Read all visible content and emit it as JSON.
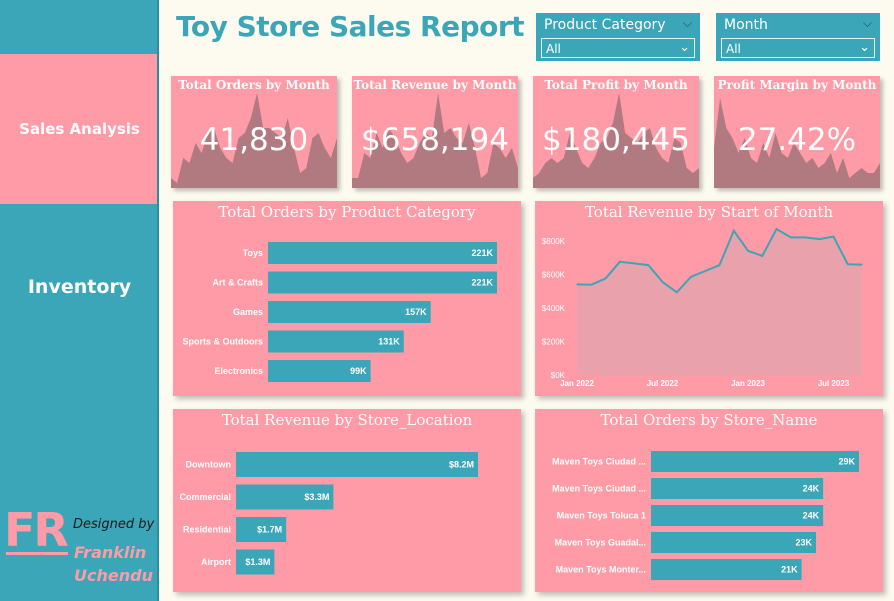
{
  "header": {
    "title": "Toy Store Sales Report"
  },
  "slicers": [
    {
      "label": "Product Category",
      "value": "All"
    },
    {
      "label": "Month",
      "value": "All"
    }
  ],
  "sidebar": {
    "sales_analysis": "Sales Analysis",
    "inventory": "Inventory",
    "logo": "FR",
    "designed_by": "Designed by",
    "designer_first": "Franklin",
    "designer_last": "Uchendu"
  },
  "colors": {
    "teal": "#3aa6b8",
    "pink": "#ff9ba6",
    "mauve": "#b07a80",
    "background": "#fdfbf0"
  },
  "kpis": [
    {
      "title": "Total Orders by Month",
      "value": "41,830"
    },
    {
      "title": "Total Revenue by Month",
      "value": "$658,194"
    },
    {
      "title": "Total Profit by Month",
      "value": "$180,445"
    },
    {
      "title": "Profit Margin by Month",
      "value": "27.42%"
    }
  ],
  "chart_data": [
    {
      "type": "bar",
      "title": "Total Orders by Product Category",
      "categories": [
        "Toys",
        "Art & Crafts",
        "Games",
        "Sports & Outdoors",
        "Electronics"
      ],
      "values": [
        221000,
        221000,
        157000,
        131000,
        99000
      ],
      "labels": [
        "221K",
        "221K",
        "157K",
        "131K",
        "99K"
      ],
      "orientation": "horizontal"
    },
    {
      "type": "area",
      "title": "Total Revenue by Start of Month",
      "x": [
        "Jan 2022",
        "Feb 2022",
        "Mar 2022",
        "Apr 2022",
        "May 2022",
        "Jun 2022",
        "Jul 2022",
        "Aug 2022",
        "Sep 2022",
        "Oct 2022",
        "Nov 2022",
        "Dec 2022",
        "Jan 2023",
        "Feb 2023",
        "Mar 2023",
        "Apr 2023",
        "May 2023",
        "Jun 2023",
        "Jul 2023",
        "Aug 2023",
        "Sep 2023"
      ],
      "values": [
        540000,
        538000,
        575000,
        675000,
        665000,
        655000,
        555000,
        493000,
        585000,
        620000,
        655000,
        860000,
        740000,
        710000,
        870000,
        820000,
        820000,
        810000,
        825000,
        660000,
        658000
      ],
      "xticks": [
        "Jan 2022",
        "Jul 2022",
        "Jan 2023",
        "Jul 2023"
      ],
      "yticks": [
        "$0K",
        "$200K",
        "$400K",
        "$600K",
        "$800K"
      ],
      "ylim": [
        0,
        900000
      ]
    },
    {
      "type": "bar",
      "title": "Total Revenue by Store_Location",
      "categories": [
        "Downtown",
        "Commercial",
        "Residential",
        "Airport"
      ],
      "values": [
        8200000,
        3300000,
        1700000,
        1300000
      ],
      "labels": [
        "$8.2M",
        "$3.3M",
        "$1.7M",
        "$1.3M"
      ],
      "orientation": "horizontal"
    },
    {
      "type": "bar",
      "title": "Total Orders by Store_Name",
      "categories": [
        "Maven Toys Ciudad ...",
        "Maven Toys Ciudad ...",
        "Maven Toys Toluca 1",
        "Maven Toys Guadal...",
        "Maven Toys Monter..."
      ],
      "values": [
        29000,
        24000,
        24000,
        23000,
        21000
      ],
      "labels": [
        "29K",
        "24K",
        "24K",
        "23K",
        "21K"
      ],
      "orientation": "horizontal"
    }
  ],
  "sparklines": [
    [
      0.1,
      0.05,
      0.3,
      0.25,
      0.45,
      0.35,
      0.55,
      0.6,
      0.4,
      0.3,
      0.25,
      0.5,
      0.55,
      0.7,
      0.95,
      0.6,
      0.6,
      0.55,
      0.5,
      0.7,
      0.4,
      0.15,
      0.2,
      0.5,
      0.55,
      0.4,
      0.3,
      0.5
    ],
    [
      0.1,
      0.1,
      0.35,
      0.3,
      0.55,
      0.4,
      0.6,
      0.5,
      0.35,
      0.25,
      0.3,
      0.45,
      0.55,
      0.5,
      0.95,
      0.55,
      0.6,
      0.5,
      0.45,
      0.65,
      0.4,
      0.1,
      0.15,
      0.45,
      0.4,
      0.3,
      0.4,
      0.2
    ],
    [
      0.1,
      0.15,
      0.25,
      0.3,
      0.25,
      0.3,
      0.55,
      0.4,
      0.25,
      0.2,
      0.3,
      0.45,
      0.5,
      0.65,
      0.95,
      0.55,
      0.5,
      0.45,
      0.55,
      0.6,
      0.4,
      0.3,
      0.25,
      0.5,
      0.45,
      0.2,
      0.15,
      0.2
    ],
    [
      0.4,
      0.9,
      0.6,
      0.5,
      0.35,
      0.5,
      0.3,
      0.25,
      0.45,
      0.3,
      0.55,
      0.35,
      0.3,
      0.45,
      0.35,
      0.25,
      0.3,
      0.2,
      0.25,
      0.35,
      0.15,
      0.3,
      0.1,
      0.15,
      0.2,
      0.15,
      0.15,
      0.25
    ]
  ]
}
